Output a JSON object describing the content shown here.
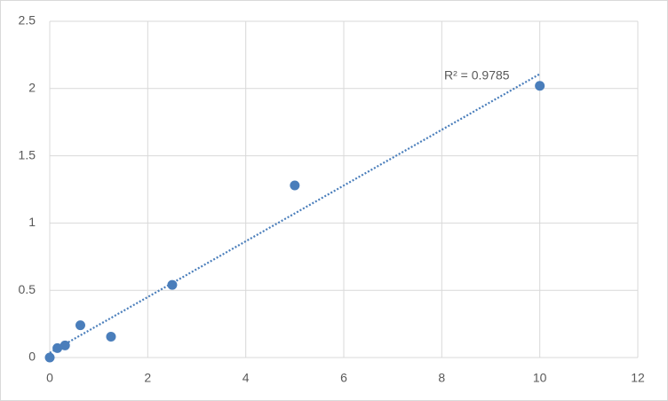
{
  "chart_data": {
    "type": "scatter",
    "x": [
      0,
      0.156,
      0.312,
      0.625,
      1.25,
      2.5,
      5,
      10
    ],
    "values": [
      0,
      0.07,
      0.09,
      0.24,
      0.155,
      0.54,
      1.28,
      2.02
    ],
    "color": "#4a7ebb",
    "trendline": "linear",
    "annotation": "R² = 0.9785",
    "xlim": [
      0,
      12
    ],
    "xticks": [
      0,
      2,
      4,
      6,
      8,
      10,
      12
    ],
    "ylim": [
      0,
      2.5
    ],
    "yticks": [
      0,
      0.5,
      1,
      1.5,
      2,
      2.5
    ],
    "grid": true
  }
}
